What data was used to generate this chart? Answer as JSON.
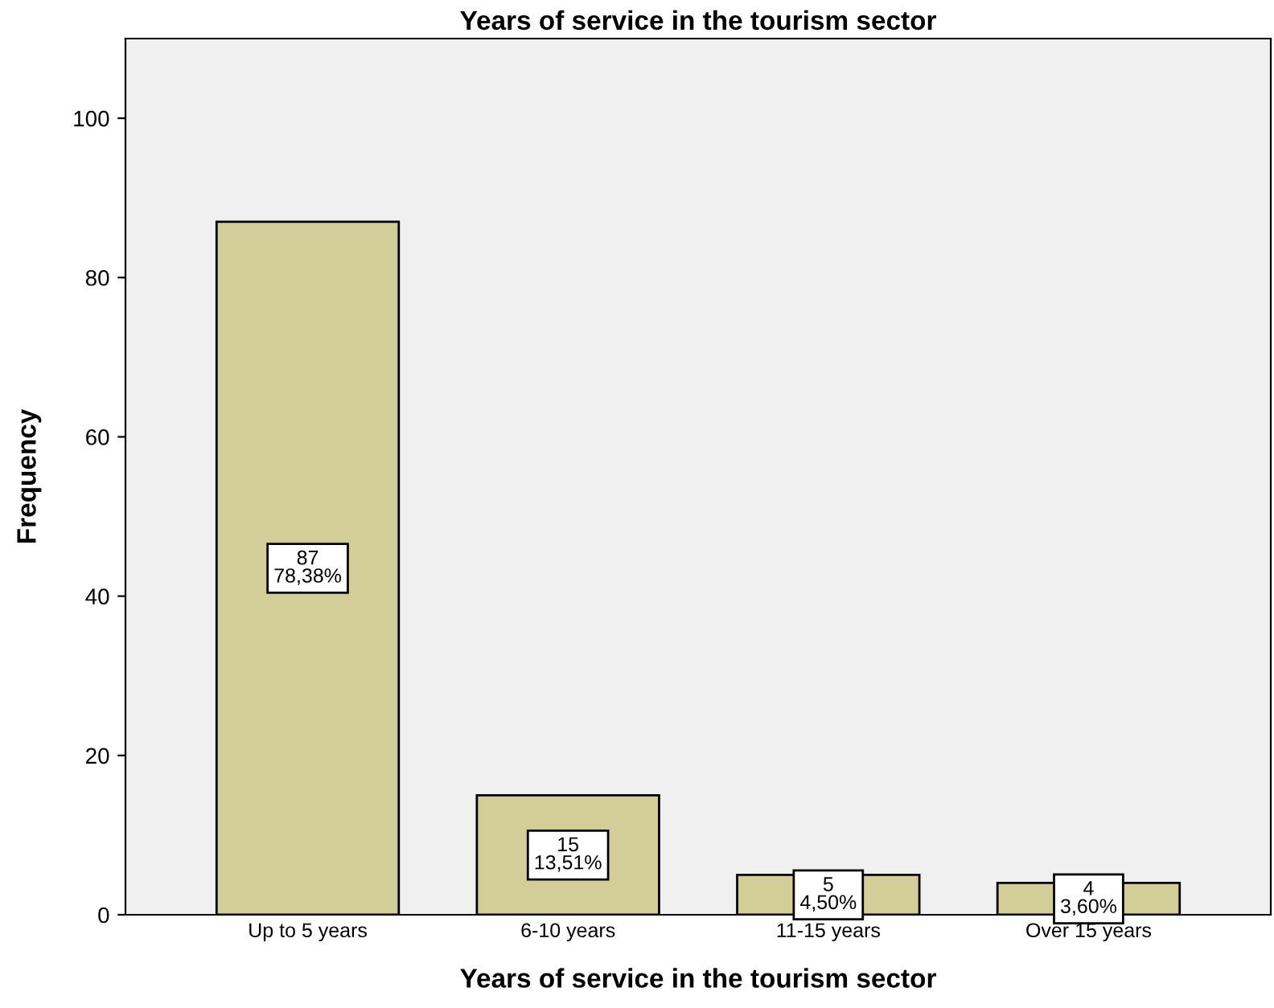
{
  "chart_data": {
    "type": "bar",
    "title": "Years of service in the tourism sector",
    "xlabel": "Years of service in the tourism sector",
    "ylabel": "Frequency",
    "categories": [
      "Up to 5 years",
      "6-10 years",
      "11-15 years",
      "Over 15 years"
    ],
    "values": [
      87,
      15,
      5,
      4
    ],
    "value_labels": [
      "87\n78,38%",
      "15\n13,51%",
      "5\n4,50%",
      "4\n3,60%"
    ],
    "color": "#d3ce97",
    "ylim": [
      0,
      110
    ],
    "yticks": [
      0,
      20,
      40,
      60,
      80,
      100
    ],
    "grid": false,
    "legend": false
  }
}
